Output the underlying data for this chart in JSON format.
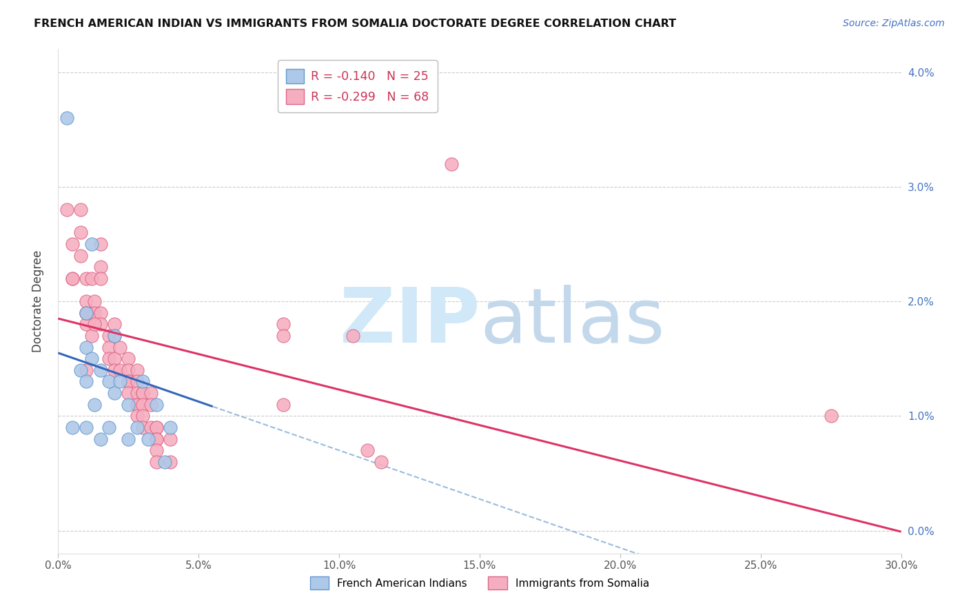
{
  "title": "FRENCH AMERICAN INDIAN VS IMMIGRANTS FROM SOMALIA DOCTORATE DEGREE CORRELATION CHART",
  "source": "Source: ZipAtlas.com",
  "ylabel": "Doctorate Degree",
  "xlim": [
    0.0,
    0.3
  ],
  "ylim": [
    -0.002,
    0.042
  ],
  "plot_ylim": [
    0.0,
    0.04
  ],
  "xticks": [
    0.0,
    0.05,
    0.1,
    0.15,
    0.2,
    0.25,
    0.3
  ],
  "xticklabels": [
    "0.0%",
    "5.0%",
    "10.0%",
    "15.0%",
    "20.0%",
    "25.0%",
    "30.0%"
  ],
  "yticks": [
    0.0,
    0.01,
    0.02,
    0.03,
    0.04
  ],
  "yticklabels": [
    "0.0%",
    "1.0%",
    "2.0%",
    "3.0%",
    "4.0%"
  ],
  "blue_R": -0.14,
  "blue_N": 25,
  "pink_R": -0.299,
  "pink_N": 68,
  "blue_label": "French American Indians",
  "pink_label": "Immigrants from Somalia",
  "blue_color": "#adc8e8",
  "pink_color": "#f5aec0",
  "blue_edge": "#6699cc",
  "pink_edge": "#dd6688",
  "regression_blue": "#3366bb",
  "regression_pink": "#dd3366",
  "regression_blue_dash": "#99bbdd",
  "blue_line_xmax": 0.055,
  "pink_line_xmax": 0.3,
  "blue_intercept": 0.0155,
  "blue_slope": -0.085,
  "pink_intercept": 0.0185,
  "pink_slope": -0.062,
  "blue_x": [
    0.003,
    0.005,
    0.008,
    0.01,
    0.01,
    0.01,
    0.01,
    0.012,
    0.013,
    0.015,
    0.015,
    0.018,
    0.018,
    0.02,
    0.02,
    0.022,
    0.025,
    0.025,
    0.028,
    0.03,
    0.032,
    0.035,
    0.038,
    0.04,
    0.012
  ],
  "blue_y": [
    0.036,
    0.009,
    0.014,
    0.019,
    0.016,
    0.013,
    0.009,
    0.015,
    0.011,
    0.014,
    0.008,
    0.013,
    0.009,
    0.017,
    0.012,
    0.013,
    0.011,
    0.008,
    0.009,
    0.013,
    0.008,
    0.011,
    0.006,
    0.009,
    0.025
  ],
  "pink_x": [
    0.003,
    0.005,
    0.005,
    0.008,
    0.008,
    0.008,
    0.01,
    0.01,
    0.01,
    0.01,
    0.01,
    0.012,
    0.012,
    0.013,
    0.013,
    0.015,
    0.015,
    0.015,
    0.015,
    0.015,
    0.018,
    0.018,
    0.018,
    0.02,
    0.02,
    0.02,
    0.02,
    0.022,
    0.022,
    0.025,
    0.025,
    0.025,
    0.025,
    0.025,
    0.028,
    0.028,
    0.028,
    0.028,
    0.028,
    0.028,
    0.03,
    0.03,
    0.03,
    0.03,
    0.03,
    0.033,
    0.033,
    0.033,
    0.035,
    0.035,
    0.035,
    0.035,
    0.035,
    0.035,
    0.04,
    0.04,
    0.08,
    0.08,
    0.08,
    0.105,
    0.11,
    0.115,
    0.275,
    0.14,
    0.005,
    0.012,
    0.01,
    0.013
  ],
  "pink_y": [
    0.028,
    0.025,
    0.022,
    0.028,
    0.026,
    0.024,
    0.022,
    0.02,
    0.019,
    0.018,
    0.014,
    0.022,
    0.019,
    0.02,
    0.019,
    0.025,
    0.023,
    0.022,
    0.019,
    0.018,
    0.017,
    0.016,
    0.015,
    0.018,
    0.017,
    0.015,
    0.014,
    0.016,
    0.014,
    0.015,
    0.014,
    0.013,
    0.013,
    0.012,
    0.014,
    0.013,
    0.012,
    0.011,
    0.011,
    0.01,
    0.012,
    0.012,
    0.011,
    0.01,
    0.009,
    0.012,
    0.011,
    0.009,
    0.009,
    0.009,
    0.008,
    0.008,
    0.007,
    0.006,
    0.008,
    0.006,
    0.018,
    0.017,
    0.011,
    0.017,
    0.007,
    0.006,
    0.01,
    0.032,
    0.022,
    0.017,
    0.019,
    0.018
  ]
}
